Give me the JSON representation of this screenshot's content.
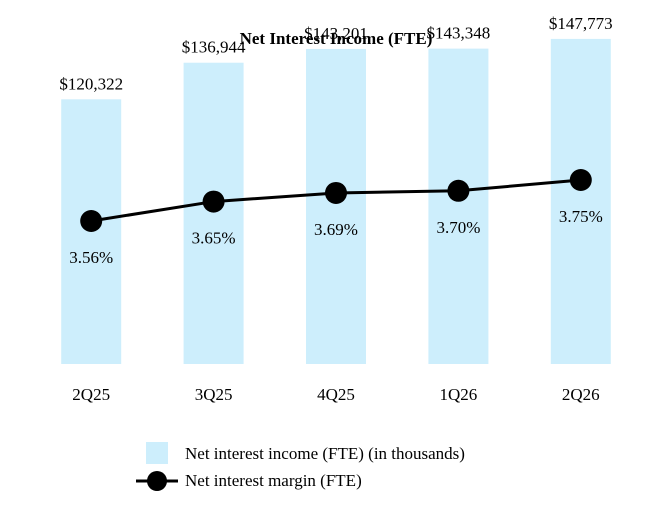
{
  "chart_data": {
    "type": "bar",
    "title": "Net Interest Income (FTE)",
    "categories": [
      "2Q25",
      "3Q25",
      "4Q25",
      "1Q26",
      "2Q26"
    ],
    "bar_ylim": [
      0,
      160000
    ],
    "line_ylim": [
      3.2,
      4.2
    ],
    "series": [
      {
        "name": "Net interest income (FTE) (in thousands)",
        "kind": "bar",
        "values": [
          120322,
          136944,
          143201,
          143348,
          147773
        ],
        "labels": [
          "$120,322",
          "$136,944",
          "$143,201",
          "$143,348",
          "$147,773"
        ],
        "color": "#cdeefc"
      },
      {
        "name": "Net interest margin (FTE)",
        "kind": "line",
        "values": [
          3.56,
          3.65,
          3.69,
          3.7,
          3.75
        ],
        "labels": [
          "3.56%",
          "3.65%",
          "3.69%",
          "3.70%",
          "3.75%"
        ],
        "color": "#000000"
      }
    ],
    "grid": false,
    "legend": "bottom"
  }
}
